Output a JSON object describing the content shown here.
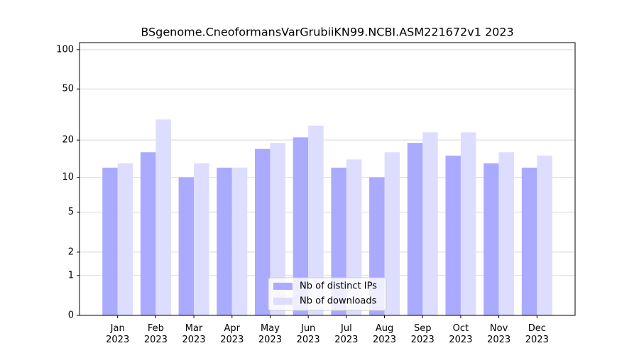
{
  "chart_data": {
    "type": "bar",
    "title": "BSgenome.CneoformansVarGrubiiKN99.NCBI.ASM221672v1 2023",
    "categories": [
      "Jan 2023",
      "Feb 2023",
      "Mar 2023",
      "Apr 2023",
      "May 2023",
      "Jun 2023",
      "Jul 2023",
      "Aug 2023",
      "Sep 2023",
      "Oct 2023",
      "Nov 2023",
      "Dec 2023"
    ],
    "series": [
      {
        "name": "Nb of distinct IPs",
        "color": "#aaaaff",
        "values": [
          12,
          16,
          10,
          12,
          17,
          21,
          12,
          10,
          19,
          15,
          13,
          12
        ]
      },
      {
        "name": "Nb of downloads",
        "color": "#ddddff",
        "values": [
          13,
          29,
          13,
          12,
          19,
          26,
          14,
          16,
          23,
          23,
          16,
          15
        ]
      }
    ],
    "yscale": "log1p",
    "ylim": [
      0,
      113
    ],
    "yticks": [
      0,
      1,
      2,
      5,
      10,
      20,
      50,
      100
    ],
    "grid": true,
    "legend": "lower center"
  }
}
